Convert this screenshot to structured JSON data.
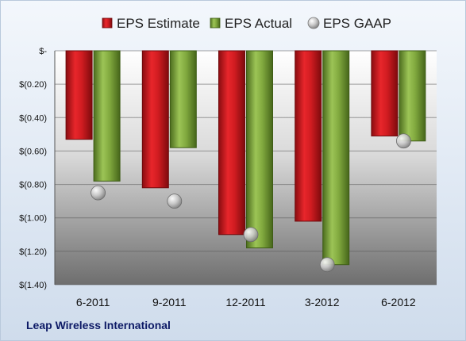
{
  "footer": {
    "company": "Leap Wireless International"
  },
  "colors": {
    "estimate": "#cc1b1f",
    "actual": "#7fa73c",
    "gaap": "#c8c8c8"
  },
  "chart_data": {
    "type": "bar",
    "title": "",
    "xlabel": "",
    "ylabel": "",
    "categories": [
      "6-2011",
      "9-2011",
      "12-2011",
      "3-2012",
      "6-2012"
    ],
    "ylim": [
      -1.4,
      0
    ],
    "yticks": [
      0,
      -0.2,
      -0.4,
      -0.6,
      -0.8,
      -1.0,
      -1.2,
      -1.4
    ],
    "ytick_labels": [
      "$-",
      "$(0.20)",
      "$(0.40)",
      "$(0.60)",
      "$(0.80)",
      "$(1.00)",
      "$(1.20)",
      "$(1.40)"
    ],
    "legend_position": "top",
    "series": [
      {
        "name": "EPS Estimate",
        "kind": "bar",
        "values": [
          -0.53,
          -0.82,
          -1.1,
          -1.02,
          -0.51
        ]
      },
      {
        "name": "EPS Actual",
        "kind": "bar",
        "values": [
          -0.78,
          -0.58,
          -1.18,
          -1.28,
          -0.54
        ]
      },
      {
        "name": "EPS GAAP",
        "kind": "marker",
        "values": [
          -0.85,
          -0.9,
          -1.1,
          -1.28,
          -0.54
        ]
      }
    ]
  }
}
